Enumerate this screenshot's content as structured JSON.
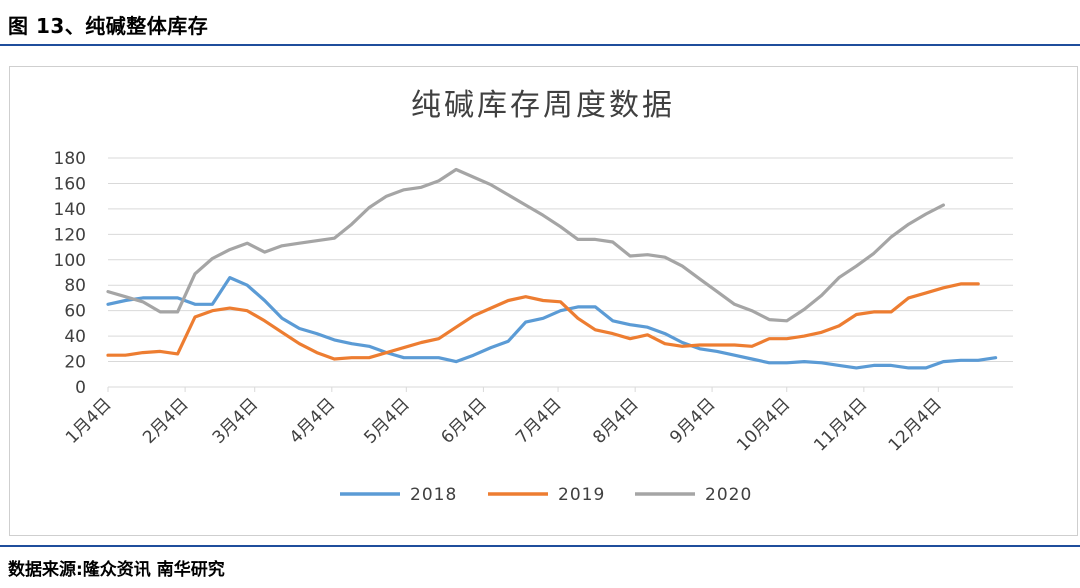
{
  "figure_title": "图 13、纯碱整体库存",
  "source_text": "数据来源:隆众资讯  南华研究",
  "colors": {
    "s2018": "#5b9bd5",
    "s2019": "#ed7d31",
    "s2020": "#a5a5a5",
    "grid": "#d9d9d9",
    "rule": "#1f4e9c"
  },
  "chart_data": {
    "type": "line",
    "title": "纯碱库存周度数据",
    "xlabel": "",
    "ylabel": "",
    "ylim": [
      0,
      180
    ],
    "yticks": [
      0,
      20,
      40,
      60,
      80,
      100,
      120,
      140,
      160,
      180
    ],
    "x_count": 53,
    "xtick_labels": [
      "1月4日",
      "2月4日",
      "3月4日",
      "4月4日",
      "5月4日",
      "6月4日",
      "7月4日",
      "8月4日",
      "9月4日",
      "10月4日",
      "11月4日",
      "12月4日"
    ],
    "xtick_index": [
      0,
      4.43,
      8.43,
      12.86,
      17.14,
      21.57,
      25.86,
      30.29,
      34.71,
      39.0,
      43.43,
      47.71
    ],
    "legend_position": "bottom",
    "series": [
      {
        "name": "2018",
        "values": [
          65,
          68,
          70,
          70,
          70,
          65,
          65,
          86,
          80,
          68,
          54,
          46,
          42,
          37,
          34,
          32,
          27,
          23,
          23,
          23,
          20,
          25,
          31,
          36,
          51,
          54,
          60,
          63,
          63,
          52,
          49,
          47,
          42,
          35,
          30,
          28,
          25,
          22,
          19,
          19,
          20,
          19,
          17,
          15,
          17,
          17,
          15,
          15,
          20,
          21,
          21,
          23
        ]
      },
      {
        "name": "2019",
        "values": [
          25,
          25,
          27,
          28,
          26,
          55,
          60,
          62,
          60,
          52,
          43,
          34,
          27,
          22,
          23,
          23,
          27,
          31,
          35,
          38,
          47,
          56,
          62,
          68,
          71,
          68,
          67,
          54,
          45,
          42,
          38,
          41,
          34,
          32,
          33,
          33,
          33,
          32,
          38,
          38,
          40,
          43,
          48,
          57,
          59,
          59,
          70,
          74,
          78,
          81,
          81
        ]
      },
      {
        "name": "2020",
        "values": [
          75,
          71,
          67,
          59,
          59,
          89,
          101,
          108,
          113,
          106,
          111,
          113,
          115,
          117,
          128,
          141,
          150,
          155,
          157,
          162,
          171,
          165,
          159,
          151,
          143,
          135,
          126,
          116,
          116,
          114,
          103,
          104,
          102,
          95,
          85,
          75,
          65,
          60,
          53,
          52,
          61,
          72,
          86,
          95,
          105,
          118,
          128,
          136,
          143
        ]
      }
    ]
  }
}
